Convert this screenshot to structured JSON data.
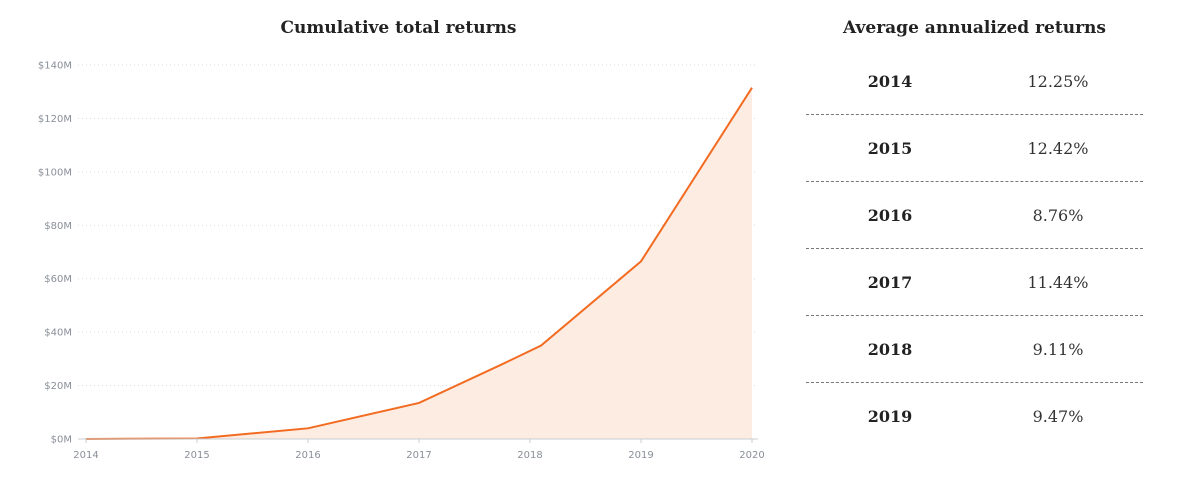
{
  "chart_data": {
    "type": "area",
    "title": "Cumulative total returns",
    "xlabel": "",
    "ylabel": "",
    "x": [
      2014,
      2015,
      2016,
      2017,
      2017.75,
      2018.1,
      2019,
      2020
    ],
    "y": [
      0,
      0.2,
      4,
      13.5,
      28,
      35,
      66.5,
      131.5
    ],
    "y_unit": "$M",
    "ylim": [
      0,
      140
    ],
    "xlim": [
      2014,
      2020
    ],
    "y_ticks": [
      "$0M",
      "$20M",
      "$40M",
      "$60M",
      "$80M",
      "$100M",
      "$120M",
      "$140M"
    ],
    "x_ticks": [
      "2014",
      "2015",
      "2016",
      "2017",
      "2018",
      "2019",
      "2020"
    ],
    "grid": "horizontal dotted",
    "legend": "none",
    "line_color": "#f26b21",
    "fill_color": "#fdece2"
  },
  "table": {
    "title": "Average annualized returns",
    "rows": [
      {
        "year": "2014",
        "value": "12.25%"
      },
      {
        "year": "2015",
        "value": "12.42%"
      },
      {
        "year": "2016",
        "value": "8.76%"
      },
      {
        "year": "2017",
        "value": "11.44%"
      },
      {
        "year": "2018",
        "value": "9.11%"
      },
      {
        "year": "2019",
        "value": "9.47%"
      }
    ]
  }
}
